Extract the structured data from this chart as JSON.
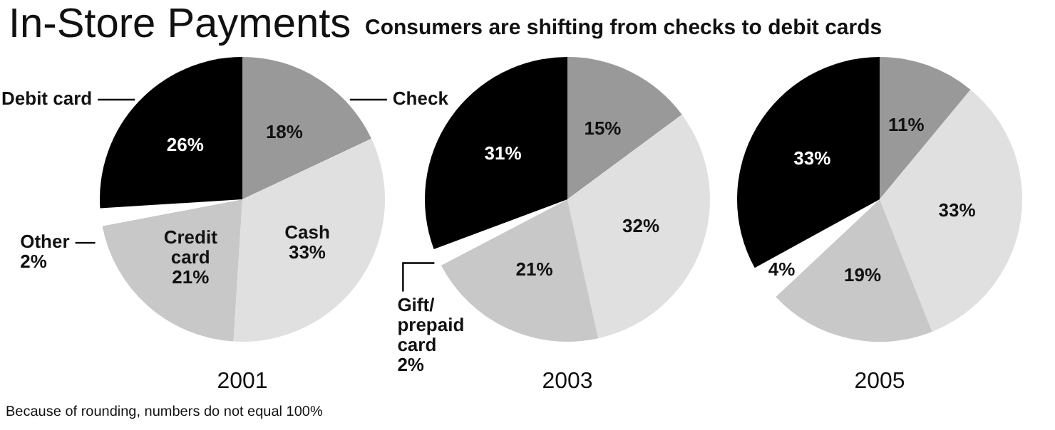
{
  "chart_data": [
    {
      "type": "pie",
      "title": "In-Store Payments",
      "xlabel": "2001",
      "categories": [
        "Check",
        "Cash",
        "Credit card",
        "Other",
        "Debit card"
      ],
      "values": [
        18,
        33,
        21,
        2,
        26
      ],
      "colors": [
        "#999999",
        "#e0e0e0",
        "#c8c8c8",
        "#ffffff",
        "#000000"
      ],
      "value_labels": [
        "18%",
        "33%",
        "21%",
        "2%",
        "26%"
      ],
      "annotations": [
        "Because of rounding, numbers do not equal 100%"
      ]
    },
    {
      "type": "pie",
      "subtitle": "Consumers are shifting from checks to debit cards",
      "xlabel": "2003",
      "categories": [
        null,
        null,
        null,
        "Gift/prepaid card",
        null
      ],
      "values": [
        15,
        32,
        21,
        2,
        31
      ],
      "colors": [
        "#999999",
        "#e0e0e0",
        "#c8c8c8",
        "#ffffff",
        "#000000"
      ],
      "value_labels": [
        "15%",
        "32%",
        "21%",
        "2%",
        "31%"
      ]
    },
    {
      "type": "pie",
      "xlabel": "2005",
      "categories": [
        null,
        null,
        null,
        null,
        null
      ],
      "values": [
        11,
        33,
        19,
        4,
        33
      ],
      "colors": [
        "#999999",
        "#e0e0e0",
        "#c8c8c8",
        "#ffffff",
        "#000000"
      ],
      "value_labels": [
        "11%",
        "33%",
        "19%",
        "4%",
        "33%"
      ]
    }
  ]
}
